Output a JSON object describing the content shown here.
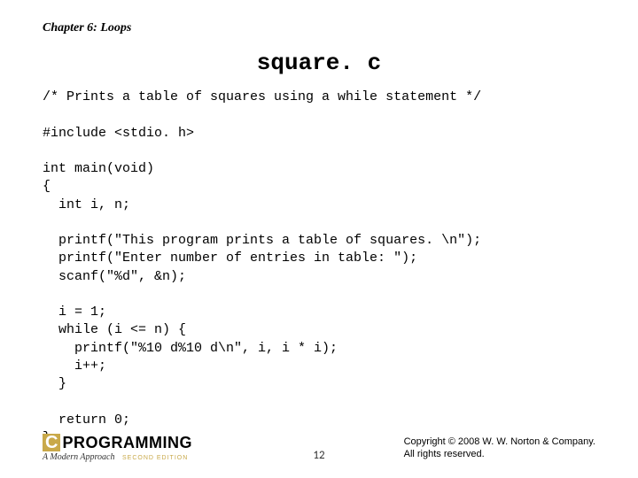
{
  "chapter": "Chapter 6: Loops",
  "title": "square. c",
  "code": "/* Prints a table of squares using a while statement */\n\n#include <stdio. h>\n\nint main(void)\n{\n  int i, n;\n\n  printf(\"This program prints a table of squares. \\n\");\n  printf(\"Enter number of entries in table: \");\n  scanf(\"%d\", &n);\n\n  i = 1;\n  while (i <= n) {\n    printf(\"%10 d%10 d\\n\", i, i * i);\n    i++;\n  }\n\n  return 0;\n}",
  "footer": {
    "logo_c": "C",
    "logo_text": "PROGRAMMING",
    "logo_sub": "A Modern Approach",
    "logo_edition": "SECOND EDITION",
    "page": "12",
    "copyright_line1": "Copyright © 2008 W. W. Norton & Company.",
    "copyright_line2": "All rights reserved."
  }
}
